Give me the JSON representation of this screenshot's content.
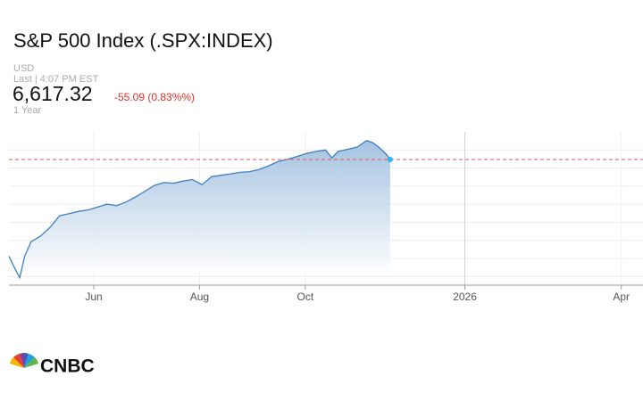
{
  "header": {
    "title": "S&P 500 Index (.SPX:INDEX)",
    "currency": "USD",
    "last_time": "Last | 4:07 PM EST",
    "price": "6,617.32",
    "change": "-55.09 (0.83%%)",
    "range": "1 Year"
  },
  "chart_data": {
    "type": "area",
    "color": "#3f7fc0",
    "marker_color": "#29b6f6",
    "x": [
      2025.28,
      2025.29,
      2025.297,
      2025.305,
      2025.315,
      2025.33,
      2025.345,
      2025.36,
      2025.375,
      2025.39,
      2025.405,
      2025.42,
      2025.435,
      2025.45,
      2025.465,
      2025.48,
      2025.495,
      2025.51,
      2025.525,
      2025.54,
      2025.555,
      2025.57,
      2025.585,
      2025.6,
      2025.615,
      2025.63,
      2025.645,
      2025.66,
      2025.675,
      2025.69,
      2025.705,
      2025.72,
      2025.735,
      2025.75,
      2025.765,
      2025.78,
      2025.79,
      2025.8,
      2025.815,
      2025.83,
      2025.845,
      2025.855,
      2025.865,
      2025.875,
      2025.882
    ],
    "values": [
      5280,
      5100,
      4982,
      5280,
      5480,
      5560,
      5680,
      5840,
      5870,
      5900,
      5920,
      5960,
      6000,
      5980,
      6030,
      6100,
      6180,
      6260,
      6300,
      6290,
      6320,
      6340,
      6270,
      6380,
      6400,
      6420,
      6440,
      6450,
      6480,
      6530,
      6590,
      6620,
      6660,
      6700,
      6730,
      6750,
      6640,
      6730,
      6760,
      6790,
      6880,
      6850,
      6780,
      6700,
      6617.32
    ],
    "reference_line": 6617.32,
    "reference_color": "#e05a4f",
    "xlim": [
      2025.28,
      2026.27
    ],
    "xticks": [
      {
        "value": 2025.414,
        "label": "Jun"
      },
      {
        "value": 2025.581,
        "label": "Aug"
      },
      {
        "value": 2025.748,
        "label": "Oct"
      },
      {
        "value": 2026.0,
        "label": "2026"
      },
      {
        "value": 2026.247,
        "label": "Apr"
      }
    ],
    "ylim": [
      4880,
      7000
    ],
    "yticks": [
      5000,
      5250,
      5500,
      5750,
      6000,
      6250,
      6500,
      6750
    ],
    "grid": true,
    "watermark": "CNBC",
    "logo": "CNBC"
  }
}
